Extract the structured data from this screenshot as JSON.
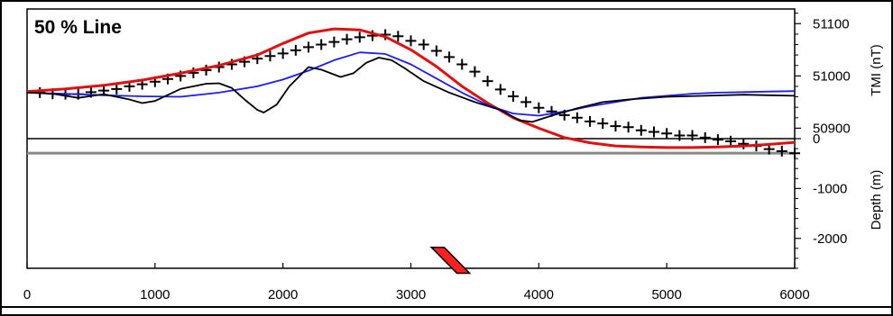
{
  "chart_data": {
    "type": "line",
    "title": "50 % Line",
    "xlabel": "",
    "x_ticks": [
      "0",
      "1000",
      "2000",
      "3000",
      "4000",
      "5000",
      "6000"
    ],
    "xlim": [
      0,
      6000
    ],
    "tmi_axis": {
      "label": "TMI (nT)",
      "ticks": [
        "51100",
        "51000",
        "50900"
      ],
      "tick_values": [
        51100,
        51000,
        50900
      ],
      "range": [
        50880,
        51128
      ]
    },
    "depth_axis": {
      "label": "Depth (m)",
      "ticks": [
        "0",
        "-1000",
        "-2000"
      ],
      "tick_values": [
        0,
        -1000,
        -2000
      ],
      "range": [
        -2600,
        0
      ]
    },
    "tmi_series": [
      {
        "style": "cross-markers",
        "color": "#000000",
        "points": [
          [
            100,
            50968
          ],
          [
            200,
            50966
          ],
          [
            300,
            50965
          ],
          [
            400,
            50965
          ],
          [
            500,
            50969
          ],
          [
            600,
            50972
          ],
          [
            700,
            50975
          ],
          [
            800,
            50980
          ],
          [
            900,
            50984
          ],
          [
            1000,
            50989
          ],
          [
            1100,
            50994
          ],
          [
            1200,
            51000
          ],
          [
            1300,
            51006
          ],
          [
            1400,
            51011
          ],
          [
            1500,
            51017
          ],
          [
            1600,
            51022
          ],
          [
            1700,
            51027
          ],
          [
            1800,
            51033
          ],
          [
            1900,
            51038
          ],
          [
            2000,
            51043
          ],
          [
            2100,
            51049
          ],
          [
            2200,
            51055
          ],
          [
            2300,
            51060
          ],
          [
            2400,
            51065
          ],
          [
            2500,
            51070
          ],
          [
            2600,
            51074
          ],
          [
            2700,
            51077
          ],
          [
            2800,
            51079
          ],
          [
            2900,
            51076
          ],
          [
            3000,
            51067
          ],
          [
            3100,
            51060
          ],
          [
            3200,
            51048
          ],
          [
            3300,
            51036
          ],
          [
            3400,
            51022
          ],
          [
            3500,
            51008
          ],
          [
            3600,
            50990
          ],
          [
            3700,
            50974
          ],
          [
            3800,
            50961
          ],
          [
            3900,
            50950
          ],
          [
            4000,
            50939
          ],
          [
            4100,
            50932
          ],
          [
            4200,
            50925
          ],
          [
            4300,
            50920
          ],
          [
            4400,
            50913
          ],
          [
            4500,
            50909
          ],
          [
            4600,
            50904
          ],
          [
            4700,
            50902
          ],
          [
            4800,
            50896
          ],
          [
            4900,
            50893
          ],
          [
            5000,
            50890
          ],
          [
            5100,
            50886
          ],
          [
            5200,
            50886
          ],
          [
            5300,
            50882
          ],
          [
            5400,
            50878
          ],
          [
            5500,
            50875
          ],
          [
            5600,
            50870
          ],
          [
            5700,
            50866
          ],
          [
            5800,
            50860
          ],
          [
            5900,
            50856
          ],
          [
            6000,
            50852
          ]
        ]
      },
      {
        "style": "line",
        "color": "#e01010",
        "points": [
          [
            0,
            50970
          ],
          [
            300,
            50975
          ],
          [
            600,
            50982
          ],
          [
            900,
            50992
          ],
          [
            1200,
            51005
          ],
          [
            1500,
            51020
          ],
          [
            1800,
            51040
          ],
          [
            2000,
            51062
          ],
          [
            2200,
            51082
          ],
          [
            2400,
            51090
          ],
          [
            2600,
            51088
          ],
          [
            2800,
            51075
          ],
          [
            3000,
            51050
          ],
          [
            3200,
            51018
          ],
          [
            3400,
            50980
          ],
          [
            3600,
            50948
          ],
          [
            3800,
            50920
          ],
          [
            4000,
            50900
          ],
          [
            4200,
            50882
          ],
          [
            4400,
            50872
          ],
          [
            4600,
            50866
          ],
          [
            4800,
            50864
          ],
          [
            5000,
            50863
          ],
          [
            5200,
            50863
          ],
          [
            5400,
            50864
          ],
          [
            5600,
            50866
          ],
          [
            5800,
            50869
          ],
          [
            6000,
            50873
          ]
        ]
      },
      {
        "style": "line",
        "color": "#1a1aff",
        "points": [
          [
            0,
            50968
          ],
          [
            300,
            50966
          ],
          [
            600,
            50963
          ],
          [
            900,
            50961
          ],
          [
            1200,
            50960
          ],
          [
            1500,
            50968
          ],
          [
            1800,
            50980
          ],
          [
            2000,
            50993
          ],
          [
            2200,
            51010
          ],
          [
            2400,
            51030
          ],
          [
            2600,
            51045
          ],
          [
            2800,
            51042
          ],
          [
            3000,
            51022
          ],
          [
            3200,
            50995
          ],
          [
            3400,
            50968
          ],
          [
            3600,
            50944
          ],
          [
            3800,
            50928
          ],
          [
            4000,
            50924
          ],
          [
            4200,
            50932
          ],
          [
            4400,
            50942
          ],
          [
            4600,
            50950
          ],
          [
            4800,
            50958
          ],
          [
            5000,
            50962
          ],
          [
            5200,
            50966
          ],
          [
            5400,
            50968
          ],
          [
            5600,
            50969
          ],
          [
            5800,
            50970
          ],
          [
            6000,
            50971
          ]
        ]
      },
      {
        "style": "line",
        "color": "#000000",
        "points": [
          [
            0,
            50968
          ],
          [
            200,
            50966
          ],
          [
            400,
            50958
          ],
          [
            600,
            50965
          ],
          [
            800,
            50955
          ],
          [
            900,
            50948
          ],
          [
            1000,
            50952
          ],
          [
            1200,
            50975
          ],
          [
            1400,
            50985
          ],
          [
            1500,
            50986
          ],
          [
            1600,
            50977
          ],
          [
            1700,
            50955
          ],
          [
            1800,
            50935
          ],
          [
            1850,
            50930
          ],
          [
            1950,
            50945
          ],
          [
            2050,
            50980
          ],
          [
            2200,
            51017
          ],
          [
            2300,
            51012
          ],
          [
            2450,
            50998
          ],
          [
            2550,
            51005
          ],
          [
            2650,
            51025
          ],
          [
            2750,
            51035
          ],
          [
            2850,
            51030
          ],
          [
            2950,
            51015
          ],
          [
            3100,
            50990
          ],
          [
            3300,
            50968
          ],
          [
            3500,
            50950
          ],
          [
            3700,
            50935
          ],
          [
            3850,
            50915
          ],
          [
            3950,
            50912
          ],
          [
            4100,
            50924
          ],
          [
            4300,
            50938
          ],
          [
            4500,
            50950
          ],
          [
            4700,
            50955
          ],
          [
            5000,
            50960
          ],
          [
            5300,
            50962
          ],
          [
            5600,
            50964
          ],
          [
            5800,
            50963
          ],
          [
            6000,
            50962
          ]
        ]
      }
    ],
    "depth_lines": [
      {
        "color": "#888888",
        "points": [
          [
            0,
            -290
          ],
          [
            6000,
            -290
          ]
        ]
      },
      {
        "color": "#000000",
        "points": [
          [
            0,
            0
          ],
          [
            6000,
            0
          ]
        ]
      }
    ],
    "body": {
      "color": "#ff2020",
      "outline": "#000000",
      "polygon": [
        [
          3160,
          -2180
        ],
        [
          3260,
          -2180
        ],
        [
          3460,
          -2700
        ],
        [
          3360,
          -2700
        ]
      ]
    },
    "grid": false,
    "legend": "none"
  }
}
